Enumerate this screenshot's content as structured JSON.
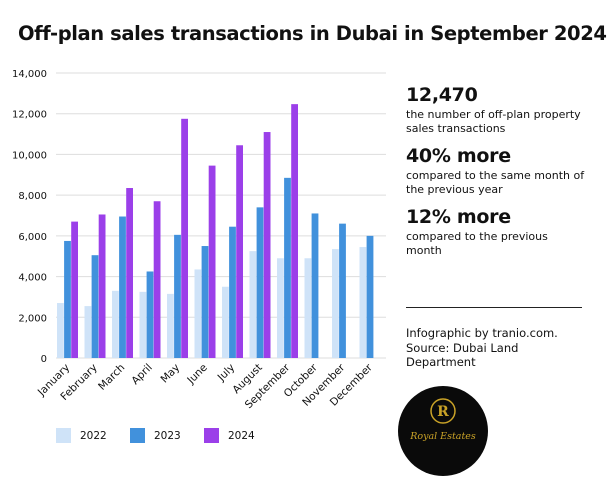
{
  "title": "Off-plan sales transactions in Dubai in September 2024",
  "stats": [
    {
      "value": "12,470",
      "description": "the number of off-plan property sales transactions"
    },
    {
      "value": "40% more",
      "description": "compared to the same month of the previous year"
    },
    {
      "value": "12% more",
      "description": "compared to the previous month"
    }
  ],
  "footer": {
    "credit": "Infographic by tranio.com.",
    "source": "Source: Dubai Land Department"
  },
  "logo": {
    "letter": "R",
    "text": "Royal Estates",
    "ring_color": "#c9a227",
    "bg_color": "#0a0a0a"
  },
  "colors": {
    "2022": "#cfe3f8",
    "2023": "#4191dc",
    "2024": "#9b3fe9",
    "grid": "#dddddd"
  },
  "chart_data": {
    "type": "bar",
    "categories": [
      "January",
      "February",
      "March",
      "April",
      "May",
      "June",
      "July",
      "August",
      "September",
      "October",
      "November",
      "December"
    ],
    "series": [
      {
        "name": "2022",
        "values": [
          2700,
          2550,
          3300,
          3250,
          3150,
          4350,
          3500,
          5250,
          4900,
          4900,
          5350,
          5450
        ]
      },
      {
        "name": "2023",
        "values": [
          5750,
          5050,
          6950,
          4250,
          6050,
          5500,
          6450,
          7400,
          8850,
          7100,
          6600,
          6000
        ]
      },
      {
        "name": "2024",
        "values": [
          6700,
          7050,
          8350,
          7700,
          11750,
          9450,
          10450,
          11100,
          12470,
          null,
          null,
          null
        ]
      }
    ],
    "yticks": [
      0,
      2000,
      4000,
      6000,
      8000,
      10000,
      12000,
      14000
    ],
    "ytick_labels": [
      "0",
      "2,000",
      "4,000",
      "6,000",
      "8,000",
      "10,000",
      "12,000",
      "14,000"
    ],
    "ylim": [
      0,
      14000
    ],
    "grid": true,
    "legend_position": "bottom"
  }
}
